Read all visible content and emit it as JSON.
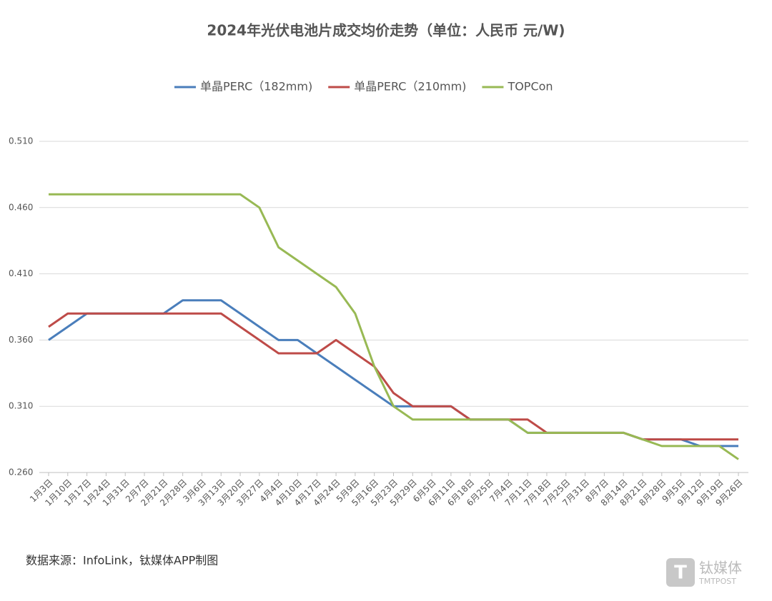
{
  "chart_data": {
    "type": "line",
    "title": "2024年光伏电池片成交均价走势（单位：人民币 元/W)",
    "source": "数据来源：InfoLink，钛媒体APP制图",
    "watermark": [
      "钛媒体",
      "TMTPOST"
    ],
    "categories": [
      "1月3日",
      "1月10日",
      "1月17日",
      "1月24日",
      "1月31日",
      "2月7日",
      "2月21日",
      "2月28日",
      "3月6日",
      "3月13日",
      "3月20日",
      "3月27日",
      "4月4日",
      "4月10日",
      "4月17日",
      "4月24日",
      "5月9日",
      "5月16日",
      "5月23日",
      "5月29日",
      "6月5日",
      "6月11日",
      "6月18日",
      "6月25日",
      "7月4日",
      "7月11日",
      "7月18日",
      "7月25日",
      "7月31日",
      "8月7日",
      "8月14日",
      "8月21日",
      "8月28日",
      "9月5日",
      "9月12日",
      "9月19日",
      "9月26日"
    ],
    "series": [
      {
        "name": "单晶PERC（182mm)",
        "color": "#4a7ebb",
        "values": [
          0.36,
          0.37,
          0.38,
          0.38,
          0.38,
          0.38,
          0.38,
          0.39,
          0.39,
          0.39,
          0.38,
          0.37,
          0.36,
          0.36,
          0.35,
          0.34,
          0.33,
          0.32,
          0.31,
          0.31,
          0.31,
          0.31,
          0.3,
          0.3,
          0.3,
          0.29,
          0.29,
          0.29,
          0.29,
          0.29,
          0.29,
          0.285,
          0.285,
          0.285,
          0.28,
          0.28,
          0.28
        ]
      },
      {
        "name": "单晶PERC（210mm)",
        "color": "#be4b48",
        "values": [
          0.37,
          0.38,
          0.38,
          0.38,
          0.38,
          0.38,
          0.38,
          0.38,
          0.38,
          0.38,
          0.37,
          0.36,
          0.35,
          0.35,
          0.35,
          0.36,
          0.35,
          0.34,
          0.32,
          0.31,
          0.31,
          0.31,
          0.3,
          0.3,
          0.3,
          0.3,
          0.29,
          0.29,
          0.29,
          0.29,
          0.29,
          0.285,
          0.285,
          0.285,
          0.285,
          0.285,
          0.285
        ]
      },
      {
        "name": "TOPCon",
        "color": "#98b954",
        "values": [
          0.47,
          0.47,
          0.47,
          0.47,
          0.47,
          0.47,
          0.47,
          0.47,
          0.47,
          0.47,
          0.47,
          0.46,
          0.43,
          0.42,
          0.41,
          0.4,
          0.38,
          0.34,
          0.31,
          0.3,
          0.3,
          0.3,
          0.3,
          0.3,
          0.3,
          0.29,
          0.29,
          0.29,
          0.29,
          0.29,
          0.29,
          0.285,
          0.28,
          0.28,
          0.28,
          0.28,
          0.27
        ]
      }
    ],
    "ylim": [
      0.26,
      0.51
    ],
    "yticks": [
      {
        "value": 0.26,
        "label": "0.260"
      },
      {
        "value": 0.31,
        "label": "0.310"
      },
      {
        "value": 0.36,
        "label": "0.360"
      },
      {
        "value": 0.41,
        "label": "0.410"
      },
      {
        "value": 0.46,
        "label": "0.460"
      },
      {
        "value": 0.51,
        "label": "0.510"
      }
    ],
    "grid": true
  }
}
